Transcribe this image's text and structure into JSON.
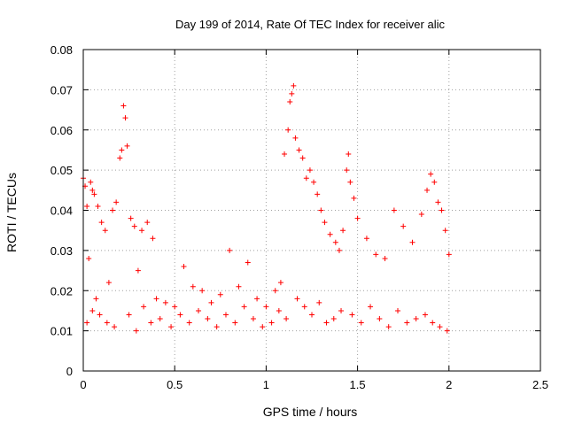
{
  "chart_data": {
    "type": "scatter",
    "title": "Day 199 of 2014, Rate Of TEC Index for receiver alic",
    "xlabel": "GPS time / hours",
    "ylabel": "ROTI / TECUs",
    "xlim": [
      0,
      2.5
    ],
    "ylim": [
      0,
      0.08
    ],
    "xticks": [
      0,
      0.5,
      1,
      1.5,
      2,
      2.5
    ],
    "xtick_labels": [
      "0",
      "0.5",
      "1",
      "1.5",
      "2",
      "2.5"
    ],
    "yticks": [
      0,
      0.01,
      0.02,
      0.03,
      0.04,
      0.05,
      0.06,
      0.07,
      0.08
    ],
    "ytick_labels": [
      "0",
      "0.01",
      "0.02",
      "0.03",
      "0.04",
      "0.05",
      "0.06",
      "0.07",
      "0.08"
    ],
    "grid": true,
    "marker": "+",
    "marker_color": "#ff0000",
    "series": [
      {
        "name": "ROTI",
        "x": [
          0.0,
          0.01,
          0.02,
          0.03,
          0.04,
          0.05,
          0.06,
          0.07,
          0.08,
          0.1,
          0.12,
          0.14,
          0.16,
          0.18,
          0.2,
          0.21,
          0.22,
          0.23,
          0.24,
          0.26,
          0.28,
          0.3,
          0.32,
          0.35,
          0.38,
          0.4,
          0.45,
          0.5,
          0.55,
          0.6,
          0.65,
          0.7,
          0.75,
          0.8,
          0.85,
          0.9,
          0.95,
          1.0,
          1.05,
          1.08,
          1.1,
          1.12,
          1.13,
          1.14,
          1.15,
          1.16,
          1.18,
          1.2,
          1.22,
          1.24,
          1.26,
          1.28,
          1.3,
          1.32,
          1.35,
          1.38,
          1.4,
          1.42,
          1.44,
          1.45,
          1.46,
          1.48,
          1.5,
          1.55,
          1.6,
          1.65,
          1.7,
          1.75,
          1.8,
          1.85,
          1.88,
          1.9,
          1.92,
          1.94,
          1.96,
          1.98,
          2.0,
          0.02,
          0.05,
          0.09,
          0.13,
          0.17,
          0.25,
          0.29,
          0.33,
          0.37,
          0.42,
          0.48,
          0.53,
          0.58,
          0.63,
          0.68,
          0.73,
          0.78,
          0.83,
          0.88,
          0.93,
          0.98,
          1.03,
          1.07,
          1.11,
          1.17,
          1.21,
          1.25,
          1.29,
          1.33,
          1.37,
          1.41,
          1.47,
          1.52,
          1.57,
          1.62,
          1.67,
          1.72,
          1.77,
          1.82,
          1.87,
          1.91,
          1.95,
          1.99
        ],
        "y": [
          0.048,
          0.046,
          0.041,
          0.028,
          0.047,
          0.045,
          0.044,
          0.018,
          0.041,
          0.037,
          0.035,
          0.022,
          0.04,
          0.042,
          0.053,
          0.055,
          0.066,
          0.063,
          0.056,
          0.038,
          0.036,
          0.025,
          0.035,
          0.037,
          0.033,
          0.018,
          0.017,
          0.016,
          0.026,
          0.021,
          0.02,
          0.017,
          0.019,
          0.03,
          0.021,
          0.027,
          0.018,
          0.016,
          0.02,
          0.022,
          0.054,
          0.06,
          0.067,
          0.069,
          0.071,
          0.058,
          0.055,
          0.053,
          0.048,
          0.05,
          0.047,
          0.044,
          0.04,
          0.037,
          0.034,
          0.032,
          0.03,
          0.035,
          0.05,
          0.054,
          0.047,
          0.043,
          0.038,
          0.033,
          0.029,
          0.028,
          0.04,
          0.036,
          0.032,
          0.039,
          0.045,
          0.049,
          0.047,
          0.042,
          0.04,
          0.035,
          0.029,
          0.012,
          0.015,
          0.014,
          0.012,
          0.011,
          0.014,
          0.01,
          0.016,
          0.012,
          0.013,
          0.011,
          0.014,
          0.012,
          0.015,
          0.013,
          0.011,
          0.014,
          0.012,
          0.016,
          0.013,
          0.011,
          0.012,
          0.015,
          0.013,
          0.018,
          0.016,
          0.014,
          0.017,
          0.012,
          0.013,
          0.015,
          0.014,
          0.012,
          0.016,
          0.013,
          0.011,
          0.015,
          0.012,
          0.013,
          0.014,
          0.012,
          0.011,
          0.01
        ]
      }
    ]
  }
}
